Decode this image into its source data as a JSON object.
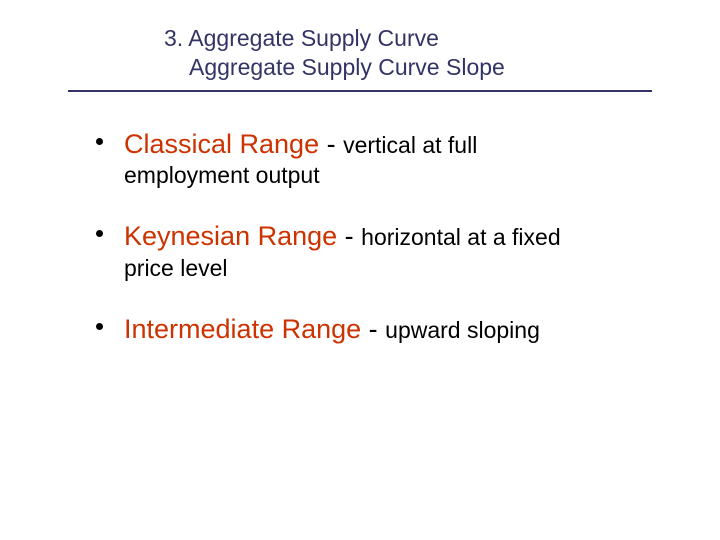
{
  "header": {
    "line1": "3. Aggregate Supply Curve",
    "line2": "Aggregate Supply Curve Slope"
  },
  "bullets": [
    {
      "term": "Classical Range",
      "desc_first": "vertical at full",
      "desc_wrap": "employment output"
    },
    {
      "term": "Keynesian Range",
      "desc_first": "horizontal at a fixed",
      "desc_wrap": "price level"
    },
    {
      "term": "Intermediate Range",
      "desc_first": "upward sloping",
      "desc_wrap": ""
    }
  ],
  "colors": {
    "header_text": "#333366",
    "header_underline": "#333366",
    "term_color": "#cc3300",
    "desc_color": "#000000",
    "bullet_color": "#000000",
    "background": "#ffffff"
  },
  "typography": {
    "header_fontsize": 23,
    "term_fontsize": 27,
    "desc_fontsize": 23,
    "font_family": "Arial"
  }
}
